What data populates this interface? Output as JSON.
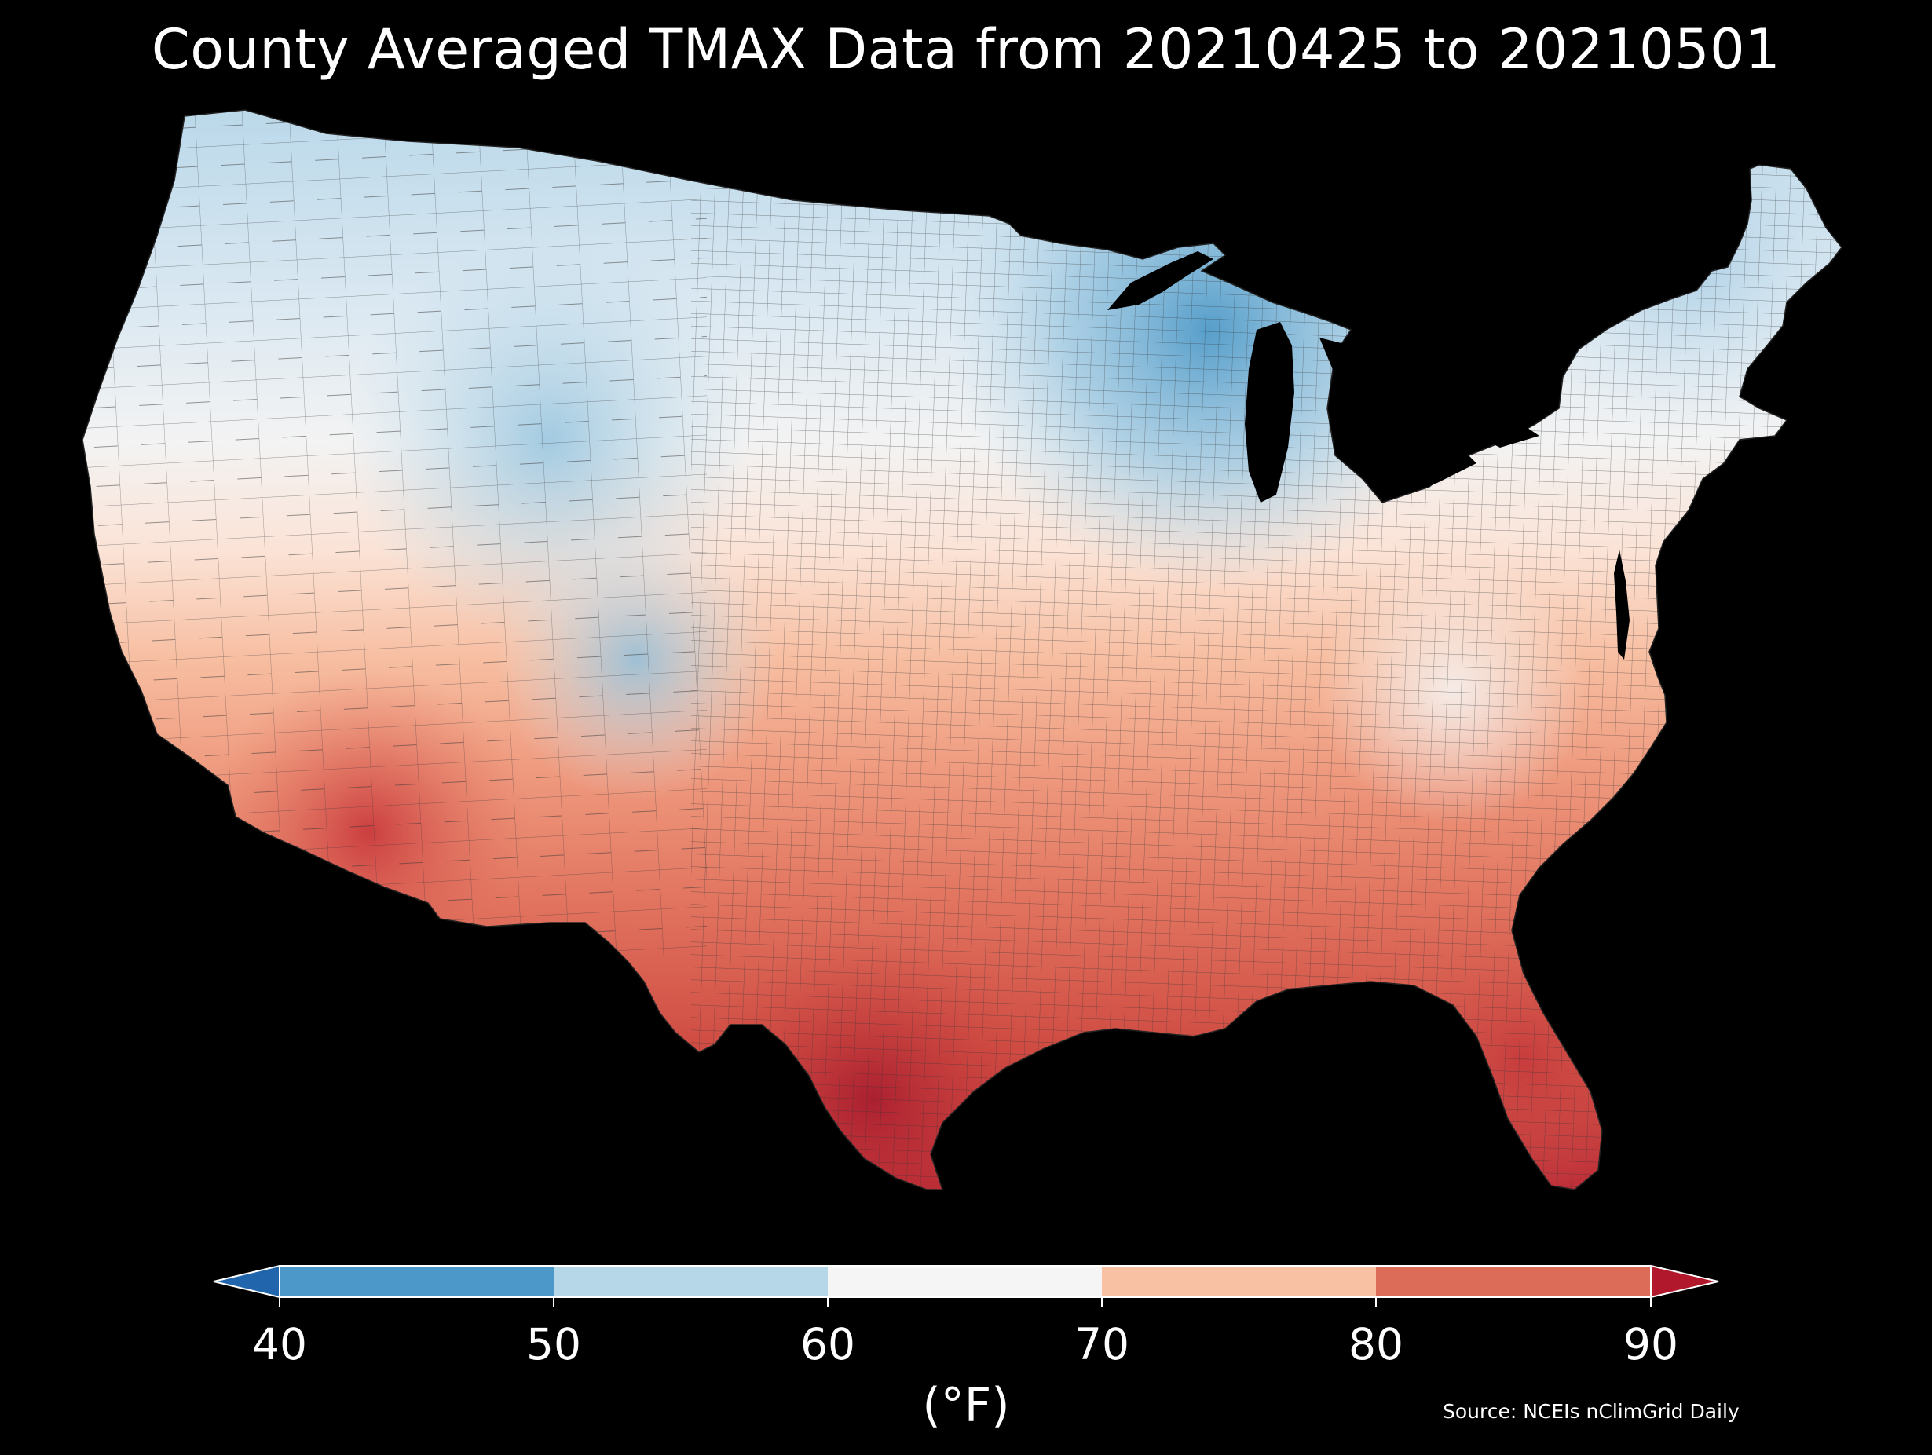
{
  "title": "County Averaged TMAX Data from 20210425 to 20210501",
  "source": "Source: NCEIs nClimGrid Daily",
  "legend": {
    "unit_label": "(°F)",
    "ticks": [
      "40",
      "50",
      "60",
      "70",
      "80",
      "90"
    ],
    "bins": [
      {
        "range": [
          40,
          50
        ],
        "color": "#4b98c9"
      },
      {
        "range": [
          50,
          60
        ],
        "color": "#b6d7e8"
      },
      {
        "range": [
          60,
          70
        ],
        "color": "#f5f5f5"
      },
      {
        "range": [
          70,
          80
        ],
        "color": "#f8c1a4"
      },
      {
        "range": [
          80,
          90
        ],
        "color": "#dc6b58"
      }
    ],
    "under_color": "#2166ac",
    "over_color": "#b2182b",
    "extend": "both"
  },
  "map": {
    "region": "Contiguous United States",
    "unit": "county",
    "variable": "TMAX"
  }
}
